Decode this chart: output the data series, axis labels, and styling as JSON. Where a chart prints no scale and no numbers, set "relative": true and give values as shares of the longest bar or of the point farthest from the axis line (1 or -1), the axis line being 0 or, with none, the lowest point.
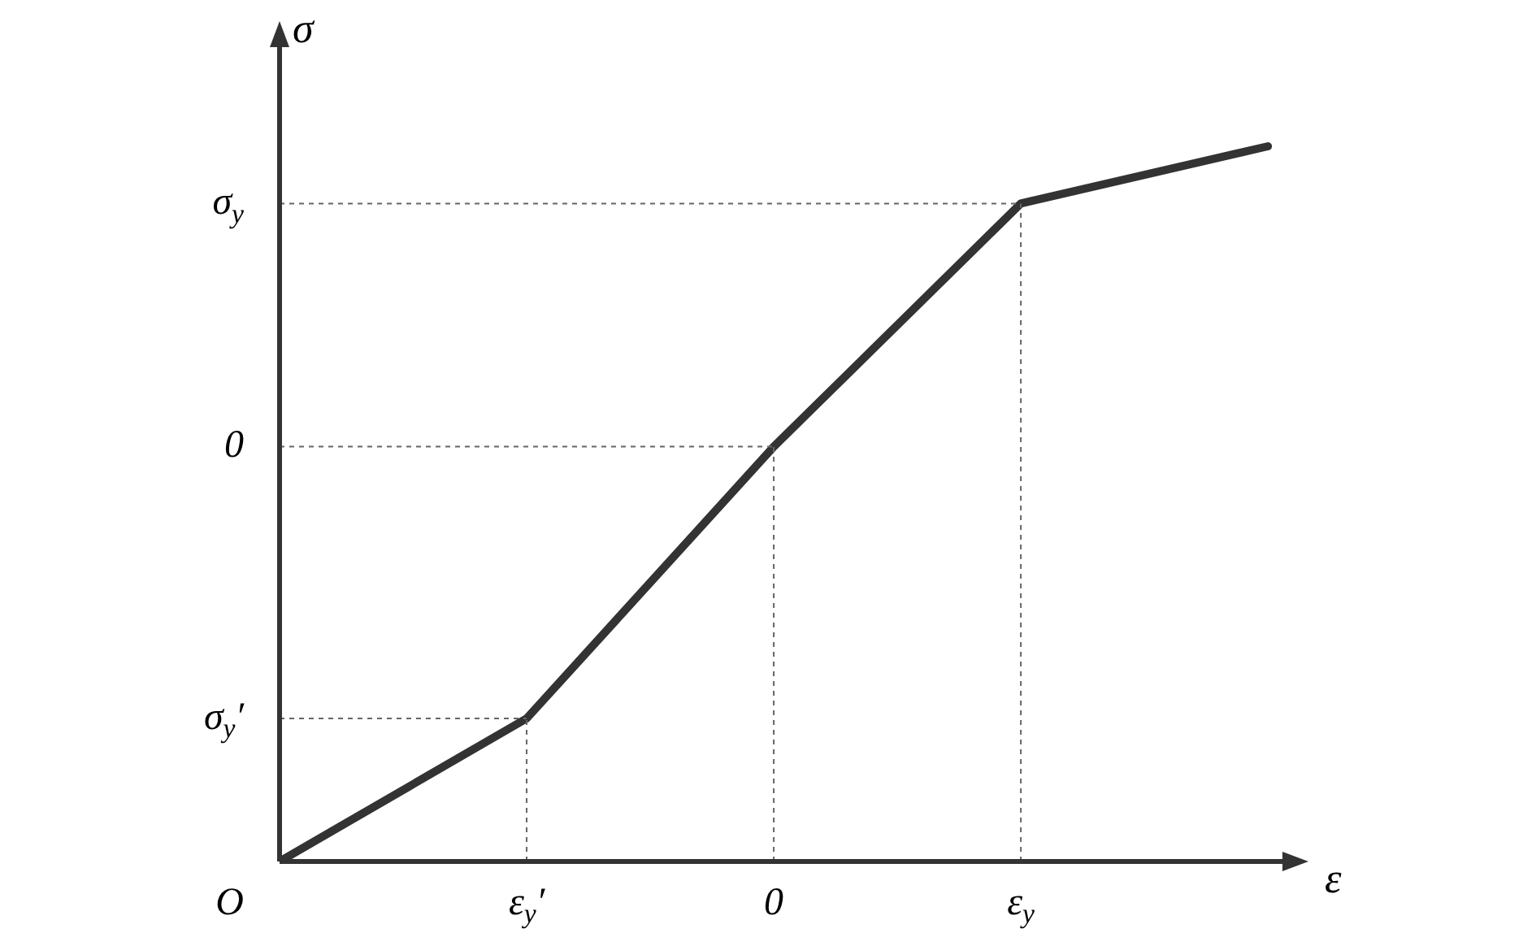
{
  "chart_data": {
    "type": "line",
    "relative": true,
    "categories": [
      null,
      "ε$_{y}$′",
      "0",
      "ε$_{y}$",
      null
    ],
    "series": [
      {
        "color": "#333333",
        "values": [
          0,
          0.2,
          0.58,
          0.92,
          1
        ]
      }
    ],
    "xlabel": "ε",
    "ylabel": "σ",
    "annotations": [
      "O",
      "σ$_{y}$′",
      "0",
      "σ$_{y}$"
    ],
    "grid": true
  }
}
